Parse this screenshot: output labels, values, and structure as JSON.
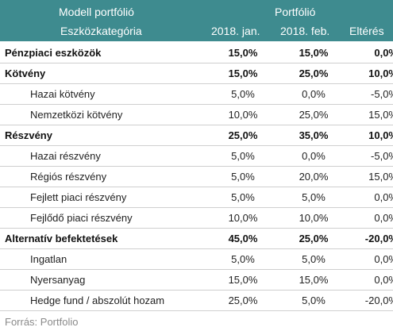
{
  "header": {
    "title": "Modell portfólió",
    "group_label": "Portfólió",
    "columns": [
      "Eszközkategória",
      "2018. jan.",
      "2018. feb.",
      "Eltérés"
    ]
  },
  "rows": [
    {
      "label": "Pénzpiaci eszközök",
      "jan": "15,0%",
      "feb": "15,0%",
      "diff": "0,0%",
      "bold": true
    },
    {
      "label": "Kötvény",
      "jan": "15,0%",
      "feb": "25,0%",
      "diff": "10,0%",
      "bold": true
    },
    {
      "label": "Hazai kötvény",
      "jan": "5,0%",
      "feb": "0,0%",
      "diff": "-5,0%",
      "bold": false
    },
    {
      "label": "Nemzetközi kötvény",
      "jan": "10,0%",
      "feb": "25,0%",
      "diff": "15,0%",
      "bold": false
    },
    {
      "label": "Részvény",
      "jan": "25,0%",
      "feb": "35,0%",
      "diff": "10,0%",
      "bold": true
    },
    {
      "label": "Hazai részvény",
      "jan": "5,0%",
      "feb": "0,0%",
      "diff": "-5,0%",
      "bold": false
    },
    {
      "label": "Régiós részvény",
      "jan": "5,0%",
      "feb": "20,0%",
      "diff": "15,0%",
      "bold": false
    },
    {
      "label": "Fejlett piaci részvény",
      "jan": "5,0%",
      "feb": "5,0%",
      "diff": "0,0%",
      "bold": false
    },
    {
      "label": "Fejlődő piaci részvény",
      "jan": "10,0%",
      "feb": "10,0%",
      "diff": "0,0%",
      "bold": false
    },
    {
      "label": "Alternatív befektetések",
      "jan": "45,0%",
      "feb": "25,0%",
      "diff": "-20,0%",
      "bold": true
    },
    {
      "label": "Ingatlan",
      "jan": "5,0%",
      "feb": "5,0%",
      "diff": "0,0%",
      "bold": false
    },
    {
      "label": "Nyersanyag",
      "jan": "15,0%",
      "feb": "15,0%",
      "diff": "0,0%",
      "bold": false
    },
    {
      "label": "Hedge fund / abszolút hozam",
      "jan": "25,0%",
      "feb": "5,0%",
      "diff": "-20,0%",
      "bold": false
    }
  ],
  "source": "Forrás: Portfolio",
  "colors": {
    "header_bg": "#3e8b8f",
    "header_text": "#ffffff",
    "source_text": "#8a8a8a"
  }
}
